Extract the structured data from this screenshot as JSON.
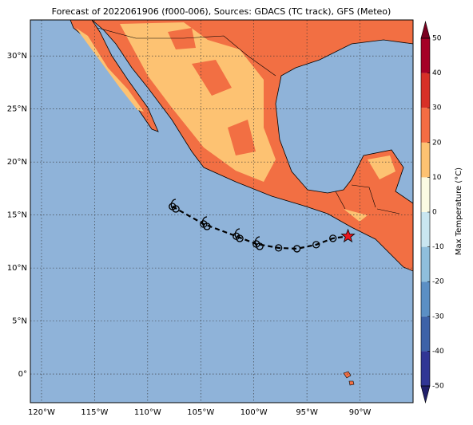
{
  "chart_data": {
    "type": "map",
    "title": "Forecast of 2022061906 (f000-006), Sources: GDACS (TC track), GFS (Meteo)",
    "lonlim": [
      -121.05,
      -85.0
    ],
    "latlim": [
      -2.7,
      33.4
    ],
    "xticks": [
      {
        "value": -120,
        "label": "120°W"
      },
      {
        "value": -115,
        "label": "115°W"
      },
      {
        "value": -110,
        "label": "110°W"
      },
      {
        "value": -105,
        "label": "105°W"
      },
      {
        "value": -100,
        "label": "100°W"
      },
      {
        "value": -95,
        "label": "95°W"
      },
      {
        "value": -90,
        "label": "90°W"
      }
    ],
    "yticks": [
      {
        "value": 0,
        "label": "0°"
      },
      {
        "value": 5,
        "label": "5°N"
      },
      {
        "value": 10,
        "label": "10°N"
      },
      {
        "value": 15,
        "label": "15°N"
      },
      {
        "value": 20,
        "label": "20°N"
      },
      {
        "value": 25,
        "label": "25°N"
      },
      {
        "value": 30,
        "label": "30°N"
      }
    ],
    "grid": true,
    "track": {
      "lon": [
        -107.67,
        -104.73,
        -101.65,
        -99.77,
        -97.67,
        -95.94,
        -94.13,
        -92.55,
        -91.13
      ],
      "lat": [
        15.8,
        14.15,
        13.0,
        12.27,
        11.9,
        11.82,
        12.2,
        12.8,
        13.0
      ]
    },
    "colorbar": {
      "label": "Max Temperature (°C)",
      "lim": [
        -50,
        50
      ],
      "ticks": [
        -50,
        -40,
        -30,
        -20,
        -10,
        0,
        10,
        20,
        30,
        40,
        50
      ],
      "colors": [
        "#313695",
        "#3d62a8",
        "#5b8fc4",
        "#8fbfdc",
        "#c9e6f0",
        "#fbfbe3",
        "#fdc272",
        "#f46d43",
        "#d73027",
        "#a50026"
      ],
      "under_color": "#21206b",
      "over_color": "#7a0020"
    }
  }
}
